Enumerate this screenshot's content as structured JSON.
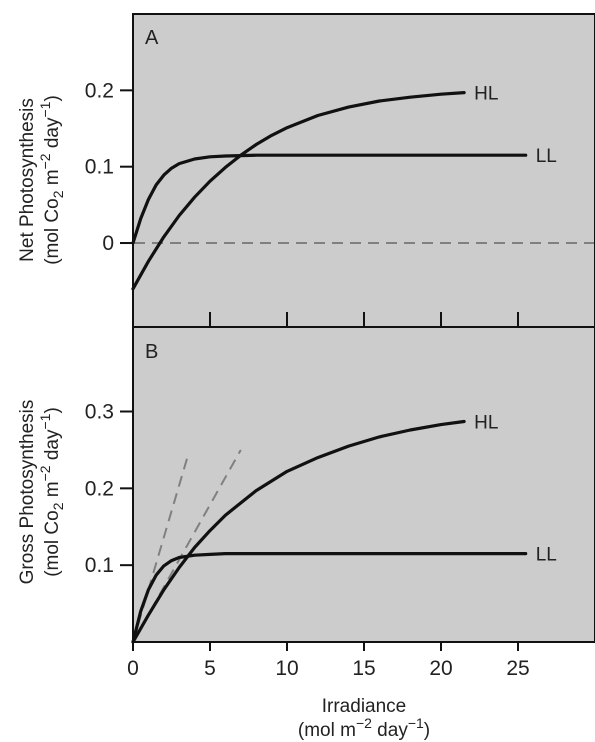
{
  "chart_data": [
    {
      "type": "line",
      "panel": "A",
      "ylabel_line1": "Net Photosynthesis",
      "ylabel_unit": {
        "pre": "(mol Co",
        "sub": "2",
        "mid1": " m",
        "sup1": "−2",
        "mid2": " day",
        "sup2": "−1",
        "post": ")"
      },
      "xlim": [
        0,
        30
      ],
      "ylim": [
        -0.11,
        0.3
      ],
      "yticks": [
        0,
        0.1,
        0.2
      ],
      "ytick_labels": [
        "0",
        "0.1",
        "0.2"
      ],
      "xticks": [
        5,
        10,
        15,
        20,
        25
      ],
      "series": [
        {
          "name": "HL",
          "x": [
            0,
            1,
            2,
            3,
            4,
            5,
            6,
            7,
            8,
            9,
            10,
            12,
            14,
            16,
            18,
            20,
            21.5
          ],
          "y": [
            -0.06,
            -0.024,
            0.008,
            0.036,
            0.06,
            0.081,
            0.099,
            0.115,
            0.129,
            0.141,
            0.151,
            0.167,
            0.178,
            0.186,
            0.191,
            0.195,
            0.197
          ]
        },
        {
          "name": "LL",
          "x": [
            0,
            0.5,
            1,
            1.5,
            2,
            2.5,
            3,
            4,
            5,
            6,
            8,
            10,
            15,
            20,
            25.5
          ],
          "y": [
            0.0,
            0.032,
            0.057,
            0.076,
            0.089,
            0.098,
            0.104,
            0.11,
            0.113,
            0.114,
            0.115,
            0.115,
            0.115,
            0.115,
            0.115
          ]
        }
      ],
      "reference_lines": [
        {
          "style": "dashed",
          "x": [
            0,
            30
          ],
          "y": [
            0,
            0
          ]
        }
      ]
    },
    {
      "type": "line",
      "panel": "B",
      "ylabel_line1": "Gross Photosynthesis",
      "ylabel_unit": {
        "pre": "(mol Co",
        "sub": "2",
        "mid1": " m",
        "sup1": "−2",
        "mid2": " day",
        "sup2": "−1",
        "post": ")"
      },
      "xlabel": "Irradiance",
      "xlabel_unit": {
        "pre": "(mol m",
        "sup1": "−2",
        "mid": " day",
        "sup2": "−1",
        "post": ")"
      },
      "xlim": [
        0,
        30
      ],
      "ylim": [
        0,
        0.41
      ],
      "yticks": [
        0.1,
        0.2,
        0.3
      ],
      "ytick_labels": [
        "0.1",
        "0.2",
        "0.3"
      ],
      "xticks": [
        0,
        5,
        10,
        15,
        20,
        25
      ],
      "xtick_labels": [
        "0",
        "5",
        "10",
        "15",
        "20",
        "25"
      ],
      "series": [
        {
          "name": "HL",
          "x": [
            0,
            1,
            2,
            3,
            4,
            5,
            6,
            8,
            10,
            12,
            14,
            16,
            18,
            20,
            21.5
          ],
          "y": [
            0.0,
            0.035,
            0.068,
            0.097,
            0.123,
            0.145,
            0.165,
            0.197,
            0.222,
            0.24,
            0.255,
            0.267,
            0.276,
            0.283,
            0.287
          ]
        },
        {
          "name": "LL",
          "x": [
            0,
            0.5,
            1,
            1.5,
            2,
            2.5,
            3,
            4,
            5,
            6,
            8,
            10,
            15,
            20,
            25.5
          ],
          "y": [
            0.0,
            0.04,
            0.068,
            0.087,
            0.099,
            0.106,
            0.11,
            0.113,
            0.114,
            0.115,
            0.115,
            0.115,
            0.115,
            0.115,
            0.115
          ]
        }
      ],
      "reference_lines": [
        {
          "style": "dashed",
          "x": [
            0,
            3.6
          ],
          "y": [
            0,
            0.245
          ]
        },
        {
          "style": "dashed",
          "x": [
            0,
            7.0
          ],
          "y": [
            0,
            0.25
          ]
        }
      ]
    }
  ]
}
